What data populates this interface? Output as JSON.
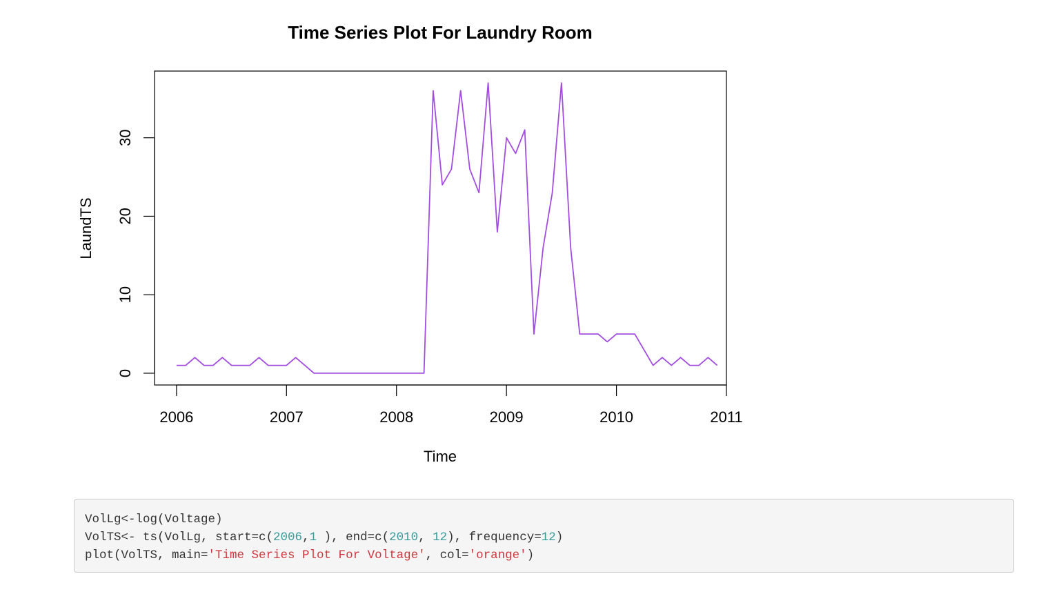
{
  "chart_data": {
    "type": "line",
    "title": "Time Series Plot For Laundry Room",
    "xlabel": "Time",
    "ylabel": "LaundTS",
    "x_start": 2006,
    "frequency": 12,
    "xlim": [
      2005.8,
      2011.0
    ],
    "ylim": [
      -1.5,
      38.5
    ],
    "x_ticks": [
      2006,
      2007,
      2008,
      2009,
      2010,
      2011
    ],
    "x_tick_labels": [
      "2006",
      "2007",
      "2008",
      "2009",
      "2010",
      "2011"
    ],
    "y_ticks": [
      0,
      10,
      20,
      30
    ],
    "y_tick_labels": [
      "0",
      "10",
      "20",
      "30"
    ],
    "grid": false,
    "legend": "none",
    "series": [
      {
        "color": "#a24de0",
        "values": [
          1,
          1,
          2,
          1,
          1,
          2,
          1,
          1,
          1,
          2,
          1,
          1,
          1,
          2,
          1,
          0,
          0,
          0,
          0,
          0,
          0,
          0,
          0,
          0,
          0,
          0,
          0,
          0,
          36,
          24,
          26,
          36,
          26,
          23,
          37,
          18,
          30,
          28,
          31,
          5,
          16,
          23,
          37,
          16,
          5,
          5,
          5,
          4,
          5,
          5,
          5,
          3,
          1,
          2,
          1,
          2,
          1,
          1,
          2,
          1
        ]
      }
    ]
  },
  "code": {
    "lines": [
      [
        {
          "t": "plain",
          "v": "VolLg<-log(Voltage)"
        }
      ],
      [
        {
          "t": "plain",
          "v": "VolTS<- ts(VolLg, start=c("
        },
        {
          "t": "num",
          "v": "2006"
        },
        {
          "t": "plain",
          "v": ","
        },
        {
          "t": "num",
          "v": "1"
        },
        {
          "t": "plain",
          "v": " ), end=c("
        },
        {
          "t": "num",
          "v": "2010"
        },
        {
          "t": "plain",
          "v": ", "
        },
        {
          "t": "num",
          "v": "12"
        },
        {
          "t": "plain",
          "v": "), frequency="
        },
        {
          "t": "num",
          "v": "12"
        },
        {
          "t": "plain",
          "v": ")"
        }
      ],
      [
        {
          "t": "plain",
          "v": "plot(VolTS, main="
        },
        {
          "t": "str",
          "v": "'Time Series Plot For Voltage'"
        },
        {
          "t": "plain",
          "v": ", col="
        },
        {
          "t": "str",
          "v": "'orange'"
        },
        {
          "t": "plain",
          "v": ")"
        }
      ]
    ]
  }
}
